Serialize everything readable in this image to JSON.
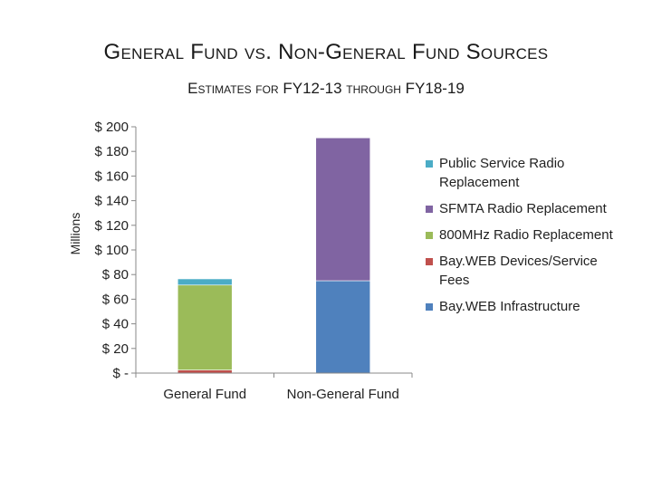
{
  "page": {
    "title": "General Fund vs. Non-General Fund Sources",
    "subtitle": "Estimates for FY12-13 through FY18-19"
  },
  "chart_data": {
    "type": "bar",
    "stacked": true,
    "title": "General Fund vs. Non-General Fund Sources",
    "subtitle": "Estimates for FY12-13 through FY18-19",
    "xlabel": "",
    "ylabel": "Millions",
    "ylim": [
      0,
      200
    ],
    "yticks": [
      0,
      20,
      40,
      60,
      80,
      100,
      120,
      140,
      160,
      180,
      200
    ],
    "ytick_labels": [
      "$ -",
      "$ 20",
      "$ 40",
      "$ 60",
      "$ 80",
      "$ 100",
      "$ 120",
      "$ 140",
      "$ 160",
      "$ 180",
      "$ 200"
    ],
    "categories": [
      "General Fund",
      "Non-General Fund"
    ],
    "grid": false,
    "legend_position": "right",
    "series": [
      {
        "name": "Bay.WEB Infrastructure",
        "color": "#4f81bd",
        "values": [
          0,
          75
        ]
      },
      {
        "name": "Bay.WEB Devices/Service Fees",
        "color": "#c0504d",
        "values": [
          2.5,
          0
        ]
      },
      {
        "name": "800MHz Radio Replacement",
        "color": "#9bbb59",
        "values": [
          69,
          0
        ]
      },
      {
        "name": "SFMTA Radio Replacement",
        "color": "#8064a2",
        "values": [
          0,
          116
        ]
      },
      {
        "name": "Public Service Radio Replacement",
        "color": "#4bacc6",
        "values": [
          5,
          0
        ]
      }
    ]
  }
}
